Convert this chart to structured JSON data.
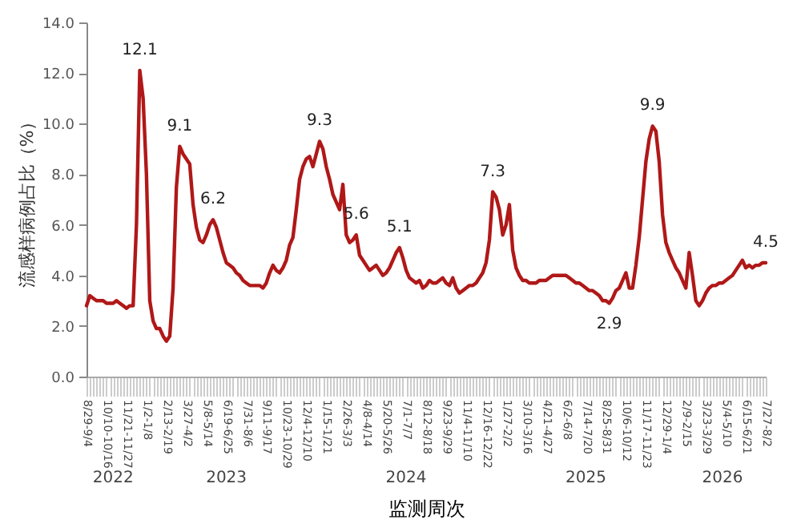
{
  "chart_data": {
    "type": "line",
    "xlabel": "监测周次",
    "ylabel": "流感样病例占比（%）",
    "categories": [
      "8/29-9/4",
      null,
      null,
      null,
      null,
      null,
      "10/10-10/16",
      null,
      null,
      null,
      null,
      null,
      "11/21-11/27",
      null,
      null,
      null,
      null,
      null,
      "1/2-1/8",
      null,
      null,
      null,
      null,
      null,
      "2/13-2/19",
      null,
      null,
      null,
      null,
      null,
      "3/27-4/2",
      null,
      null,
      null,
      null,
      null,
      "5/8-5/14",
      null,
      null,
      null,
      null,
      null,
      "6/19-6/25",
      null,
      null,
      null,
      null,
      null,
      "7/31-8/6",
      null,
      null,
      null,
      null,
      null,
      "9/11-9/17",
      null,
      null,
      null,
      null,
      null,
      "10/23-10/29",
      null,
      null,
      null,
      null,
      null,
      "12/4-12/10",
      null,
      null,
      null,
      null,
      null,
      "1/15-1/21",
      null,
      null,
      null,
      null,
      null,
      "2/26-3/3",
      null,
      null,
      null,
      null,
      null,
      "4/8-4/14",
      null,
      null,
      null,
      null,
      null,
      "5/20-5/26",
      null,
      null,
      null,
      null,
      null,
      "7/1-7/7",
      null,
      null,
      null,
      null,
      null,
      "8/12-8/18",
      null,
      null,
      null,
      null,
      null,
      "9/23-9/29",
      null,
      null,
      null,
      null,
      null,
      "11/4-11/10",
      null,
      null,
      null,
      null,
      null,
      "12/16-12/22",
      null,
      null,
      null,
      null,
      null,
      "1/27-2/2",
      null,
      null,
      null,
      null,
      null,
      "3/10-3/16",
      null,
      null,
      null,
      null,
      null,
      "4/21-4/27",
      null,
      null,
      null,
      null,
      null,
      "6/2-6/8",
      null,
      null,
      null,
      null,
      null,
      "7/14-7/20",
      null,
      null,
      null,
      null,
      null,
      "8/25-8/31",
      null,
      null,
      null,
      null,
      null,
      "10/6-10/12",
      null,
      null,
      null,
      null,
      null,
      "11/17-11/23",
      null,
      null,
      null,
      null,
      null,
      "12/29-1/4",
      null,
      null,
      null,
      null,
      null,
      "2/9-2/15",
      null,
      null,
      null,
      null,
      null,
      "3/23-3/29",
      null,
      null,
      null,
      null,
      null,
      "5/4-5/10",
      null,
      null,
      null,
      null,
      null,
      "6/15-6/21",
      null,
      null,
      null,
      null,
      null,
      "7/27-8/2"
    ],
    "series": [
      {
        "color": "#b01818",
        "values": [
          2.8,
          3.2,
          3.1,
          3.0,
          3.0,
          3.0,
          2.9,
          2.9,
          2.9,
          3.0,
          2.9,
          2.8,
          2.7,
          2.8,
          2.8,
          6.0,
          12.1,
          11.0,
          8.0,
          3.0,
          2.2,
          1.9,
          1.9,
          1.6,
          1.4,
          1.6,
          3.5,
          7.5,
          9.1,
          8.8,
          8.6,
          8.4,
          6.8,
          5.9,
          5.4,
          5.3,
          5.6,
          6.0,
          6.2,
          5.9,
          5.4,
          4.9,
          4.5,
          4.4,
          4.3,
          4.1,
          4.0,
          3.8,
          3.7,
          3.6,
          3.6,
          3.6,
          3.6,
          3.5,
          3.7,
          4.1,
          4.4,
          4.2,
          4.1,
          4.3,
          4.6,
          5.2,
          5.5,
          6.6,
          7.8,
          8.3,
          8.6,
          8.7,
          8.3,
          8.8,
          9.3,
          9.0,
          8.3,
          7.8,
          7.2,
          6.9,
          6.6,
          7.6,
          5.6,
          5.3,
          5.4,
          5.6,
          4.8,
          4.6,
          4.4,
          4.2,
          4.3,
          4.4,
          4.2,
          4.0,
          4.1,
          4.3,
          4.6,
          4.9,
          5.1,
          4.7,
          4.2,
          3.9,
          3.8,
          3.7,
          3.8,
          3.5,
          3.6,
          3.8,
          3.7,
          3.7,
          3.8,
          3.9,
          3.7,
          3.6,
          3.9,
          3.5,
          3.3,
          3.4,
          3.5,
          3.6,
          3.6,
          3.7,
          3.9,
          4.1,
          4.5,
          5.4,
          7.3,
          7.1,
          6.6,
          5.6,
          6.0,
          6.8,
          5.0,
          4.3,
          4.0,
          3.8,
          3.8,
          3.7,
          3.7,
          3.7,
          3.8,
          3.8,
          3.8,
          3.9,
          4.0,
          4.0,
          4.0,
          4.0,
          4.0,
          3.9,
          3.8,
          3.7,
          3.7,
          3.6,
          3.5,
          3.4,
          3.4,
          3.3,
          3.2,
          3.0,
          3.0,
          2.9,
          3.1,
          3.4,
          3.5,
          3.8,
          4.1,
          3.5,
          3.5,
          4.4,
          5.5,
          7.0,
          8.5,
          9.4,
          9.9,
          9.7,
          8.5,
          6.4,
          5.3,
          4.9,
          4.6,
          4.3,
          4.1,
          3.8,
          3.5,
          4.9,
          4.0,
          3.0,
          2.8,
          3.0,
          3.3,
          3.5,
          3.6,
          3.6,
          3.7,
          3.7,
          3.8,
          3.9,
          4.0,
          4.2,
          4.4,
          4.6,
          4.3,
          4.4,
          4.3,
          4.4,
          4.4,
          4.5,
          4.5
        ],
        "value_labels": [
          null,
          null,
          null,
          null,
          null,
          null,
          null,
          null,
          null,
          null,
          null,
          null,
          null,
          null,
          null,
          null,
          "12.1",
          null,
          null,
          null,
          null,
          null,
          null,
          null,
          null,
          null,
          null,
          null,
          "9.1",
          null,
          null,
          null,
          null,
          null,
          null,
          null,
          null,
          null,
          "6.2",
          null,
          null,
          null,
          null,
          null,
          null,
          null,
          null,
          null,
          null,
          null,
          null,
          null,
          null,
          null,
          null,
          null,
          null,
          null,
          null,
          null,
          null,
          null,
          null,
          null,
          null,
          null,
          null,
          null,
          null,
          null,
          "9.3",
          null,
          null,
          null,
          null,
          null,
          null,
          null,
          null,
          null,
          null,
          "5.6",
          null,
          null,
          null,
          null,
          null,
          null,
          null,
          null,
          null,
          null,
          null,
          null,
          "5.1",
          null,
          null,
          null,
          null,
          null,
          null,
          null,
          null,
          null,
          null,
          null,
          null,
          null,
          null,
          null,
          null,
          null,
          null,
          null,
          null,
          null,
          null,
          null,
          null,
          null,
          null,
          null,
          "7.3",
          null,
          null,
          null,
          null,
          null,
          null,
          null,
          null,
          null,
          null,
          null,
          null,
          null,
          null,
          null,
          null,
          null,
          null,
          null,
          null,
          null,
          null,
          null,
          null,
          null,
          null,
          null,
          null,
          null,
          null,
          null,
          null,
          null,
          null,
          "2.9",
          null,
          null,
          null,
          null,
          null,
          null,
          null,
          null,
          null,
          null,
          null,
          null,
          "9.9",
          null,
          null,
          null,
          null,
          null,
          null,
          null,
          null,
          null,
          null,
          null,
          null,
          null,
          null,
          null,
          null,
          null,
          null,
          null,
          null,
          null,
          null,
          null,
          null,
          null,
          null,
          null,
          null,
          null,
          null,
          null,
          null,
          null,
          "4.5"
        ]
      }
    ],
    "ylim": [
      0,
      14
    ],
    "yticks": [
      {
        "value": 0,
        "label": "0.0"
      },
      {
        "value": 2,
        "label": "2.0"
      },
      {
        "value": 4,
        "label": "4.0"
      },
      {
        "value": 6,
        "label": "6.0"
      },
      {
        "value": 8,
        "label": "8.0"
      },
      {
        "value": 10,
        "label": "10.0"
      },
      {
        "value": 12,
        "label": "12.0"
      },
      {
        "value": 14,
        "label": "14.0"
      }
    ],
    "grid": false,
    "marker": "none",
    "line_style": "solid",
    "annotations": [
      "2022",
      "2023",
      "2024",
      "2025",
      "2026"
    ]
  }
}
